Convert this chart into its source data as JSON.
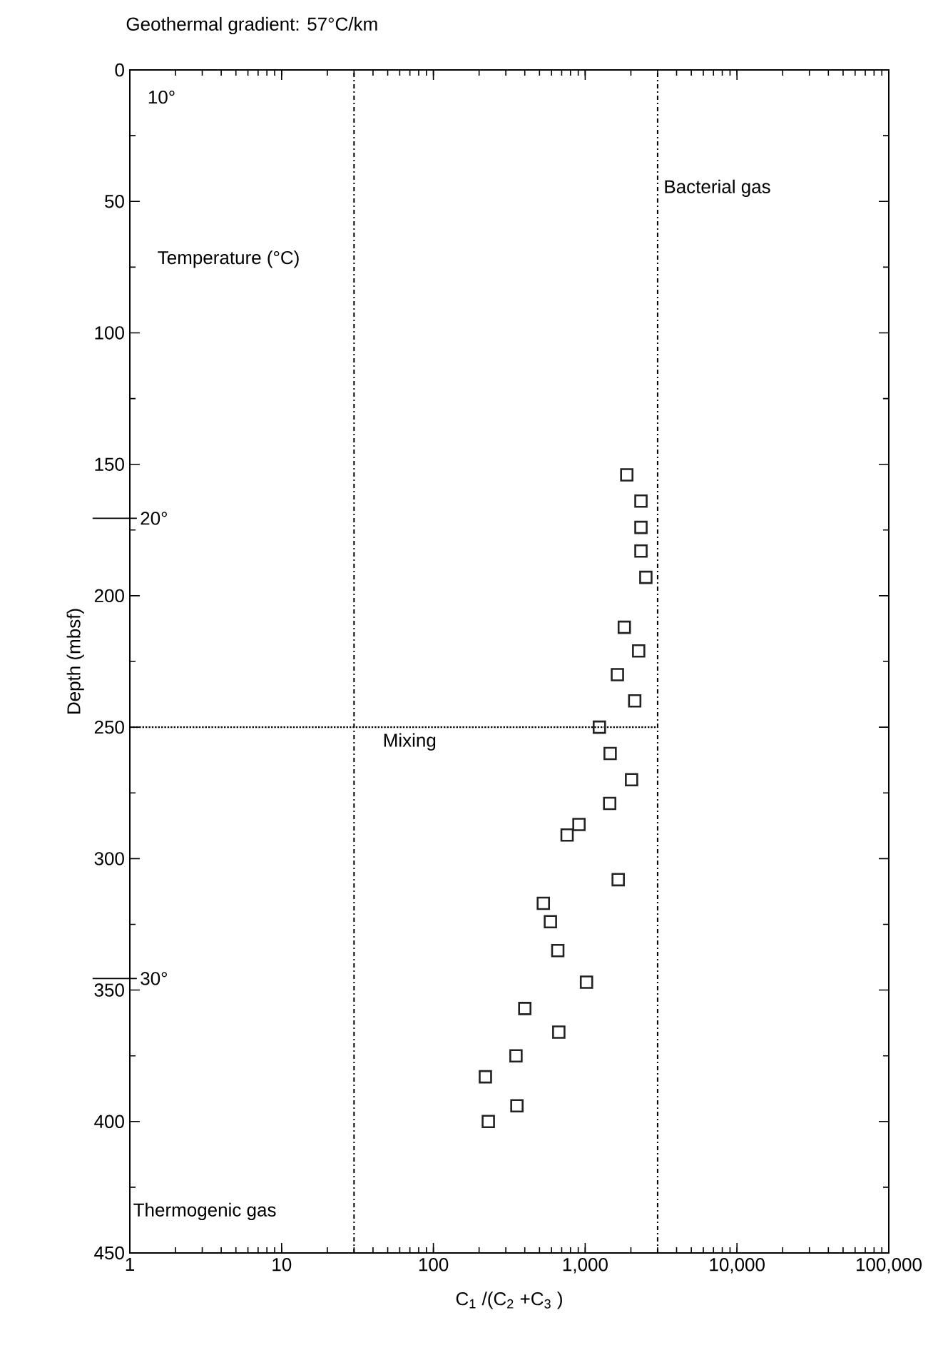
{
  "chart_data": {
    "type": "scatter",
    "title": "Geothermal gradient: 57°C/km",
    "xlabel": "C$_{1}$ /(C$_{2}$ +C$_{3}$ )",
    "ylabel": "Depth (mbsf)",
    "log": "x",
    "xlim": [
      1,
      100000
    ],
    "ylim": [
      450,
      0
    ],
    "xticks": [
      1,
      10,
      100,
      {
        "value": 1000,
        "label": "1,000"
      },
      {
        "value": 10000,
        "label": "10,000"
      },
      {
        "value": 100000,
        "label": "100,000"
      }
    ],
    "yticks": [
      0,
      50,
      100,
      150,
      200,
      250,
      300,
      350,
      400,
      450
    ],
    "grid": false,
    "marker": "square",
    "color": "#222222",
    "x": [
      1880,
      2330,
      2330,
      2330,
      2510,
      1810,
      2250,
      1630,
      2120,
      1240,
      1460,
      2020,
      1450,
      910,
      760,
      1650,
      530,
      590,
      660,
      1020,
      400,
      670,
      350,
      220,
      355,
      230
    ],
    "values": [
      154,
      164,
      174,
      183,
      193,
      212,
      221,
      230,
      240,
      250,
      260,
      270,
      279,
      287,
      291,
      308,
      317,
      324,
      335,
      347,
      357,
      366,
      375,
      383,
      394,
      400
    ],
    "ref_lines": [
      {
        "axis": "x",
        "value": 30,
        "line_style": "dashdot"
      },
      {
        "axis": "x",
        "value": 3000,
        "line_style": "dashdot"
      },
      {
        "axis": "y",
        "value": 250,
        "line_style": "dotted"
      }
    ],
    "annotations": [
      "10°",
      "Temperature (°C)",
      "Bacterial gas",
      "Mixing",
      "Thermogenic gas",
      "20°",
      "30°"
    ]
  }
}
